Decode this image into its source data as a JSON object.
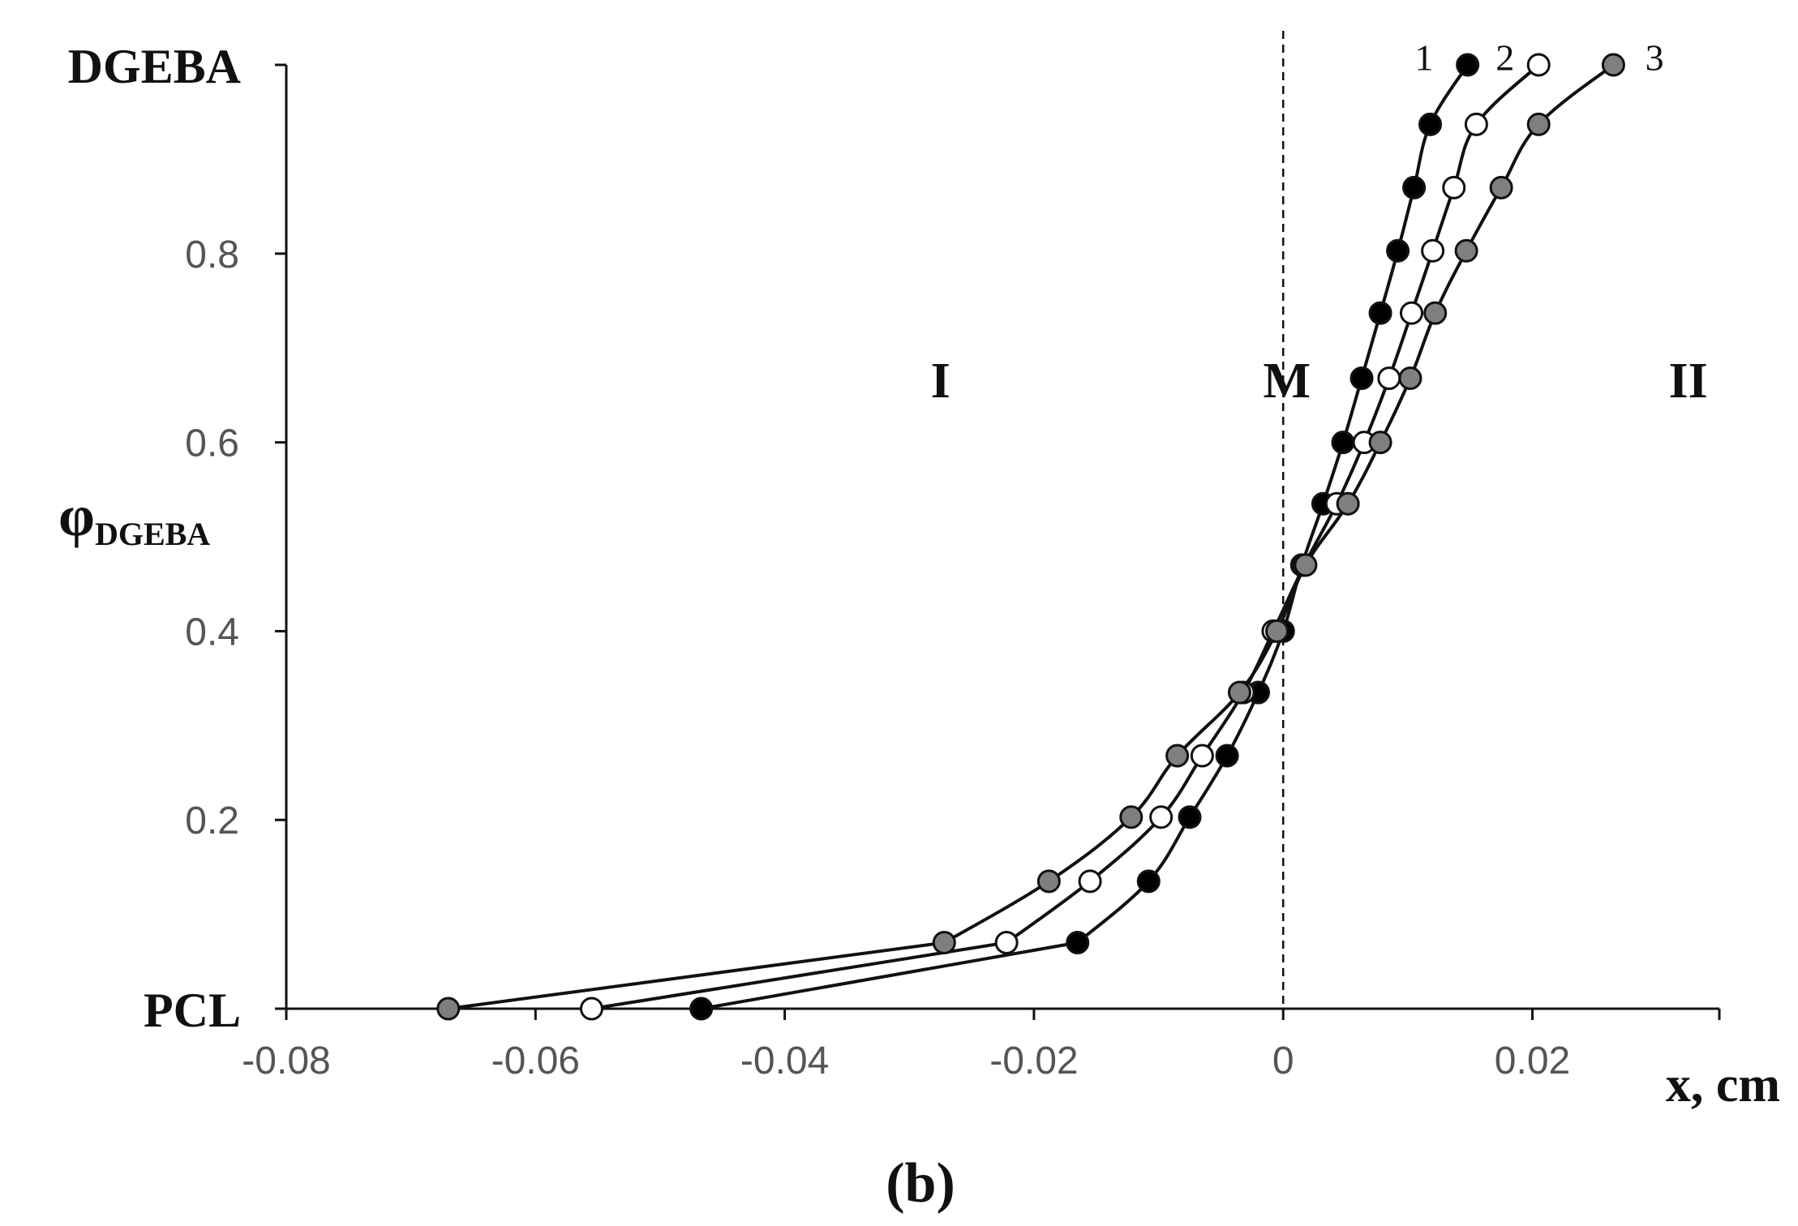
{
  "chart_data": {
    "type": "line",
    "panel_label": "(b)",
    "xlabel": "x, cm",
    "ylabel_main": "φ",
    "ylabel_sub": "DGEBA",
    "xlim": [
      -0.08,
      0.02
    ],
    "ylim": [
      0,
      1
    ],
    "x_ticks": [
      {
        "value": -0.08,
        "label": "-0.08"
      },
      {
        "value": -0.06,
        "label": "-0.06"
      },
      {
        "value": -0.04,
        "label": "-0.04"
      },
      {
        "value": -0.02,
        "label": "-0.02"
      },
      {
        "value": 0,
        "label": "0"
      },
      {
        "value": 0.02,
        "label": "0.02"
      }
    ],
    "y_ticks": [
      {
        "value": 0,
        "label": "PCL"
      },
      {
        "value": 0.2,
        "label": "0.2"
      },
      {
        "value": 0.4,
        "label": "0.4"
      },
      {
        "value": 0.6,
        "label": "0.6"
      },
      {
        "value": 0.8,
        "label": "0.8"
      },
      {
        "value": 1.0,
        "label": "DGEBA"
      }
    ],
    "vertical_line_x": 0,
    "region_labels": [
      {
        "text": "I",
        "x": -0.0275,
        "y": 0.67
      },
      {
        "text": "M",
        "x": 0.0003,
        "y": 0.67
      },
      {
        "text": "II",
        "x": 0.0325,
        "y": 0.67
      }
    ],
    "series": [
      {
        "name": "1",
        "marker_fill": "#000000",
        "points": [
          [
            -0.0467,
            0.0
          ],
          [
            -0.0165,
            0.07
          ],
          [
            -0.0108,
            0.135
          ],
          [
            -0.0075,
            0.203
          ],
          [
            -0.0045,
            0.268
          ],
          [
            -0.002,
            0.335
          ],
          [
            0.0,
            0.4
          ],
          [
            0.0015,
            0.47
          ],
          [
            0.0032,
            0.535
          ],
          [
            0.0048,
            0.6
          ],
          [
            0.0063,
            0.668
          ],
          [
            0.0078,
            0.737
          ],
          [
            0.0092,
            0.803
          ],
          [
            0.0105,
            0.87
          ],
          [
            0.0118,
            0.937
          ],
          [
            0.0148,
            1.0
          ]
        ]
      },
      {
        "name": "2",
        "marker_fill": "#ffffff",
        "points": [
          [
            -0.0555,
            0.0
          ],
          [
            -0.0222,
            0.07
          ],
          [
            -0.0155,
            0.135
          ],
          [
            -0.0098,
            0.203
          ],
          [
            -0.0065,
            0.268
          ],
          [
            -0.0032,
            0.335
          ],
          [
            -0.0008,
            0.4
          ],
          [
            0.0017,
            0.47
          ],
          [
            0.0043,
            0.535
          ],
          [
            0.0065,
            0.6
          ],
          [
            0.0085,
            0.668
          ],
          [
            0.0103,
            0.737
          ],
          [
            0.012,
            0.803
          ],
          [
            0.0137,
            0.87
          ],
          [
            0.0155,
            0.937
          ],
          [
            0.0205,
            1.0
          ]
        ]
      },
      {
        "name": "3",
        "marker_fill": "#7f7f7f",
        "points": [
          [
            -0.067,
            0.0
          ],
          [
            -0.0272,
            0.07
          ],
          [
            -0.0188,
            0.135
          ],
          [
            -0.0122,
            0.203
          ],
          [
            -0.0085,
            0.268
          ],
          [
            -0.0035,
            0.335
          ],
          [
            -0.0005,
            0.4
          ],
          [
            0.0018,
            0.47
          ],
          [
            0.0052,
            0.535
          ],
          [
            0.0078,
            0.6
          ],
          [
            0.0102,
            0.668
          ],
          [
            0.0122,
            0.737
          ],
          [
            0.0147,
            0.803
          ],
          [
            0.0175,
            0.87
          ],
          [
            0.0205,
            0.937
          ],
          [
            0.0265,
            1.0
          ]
        ]
      }
    ],
    "series_label_positions": [
      {
        "x": 0.0113,
        "y": 1.008
      },
      {
        "x": 0.0178,
        "y": 1.008
      },
      {
        "x": 0.0298,
        "y": 1.008
      }
    ]
  }
}
